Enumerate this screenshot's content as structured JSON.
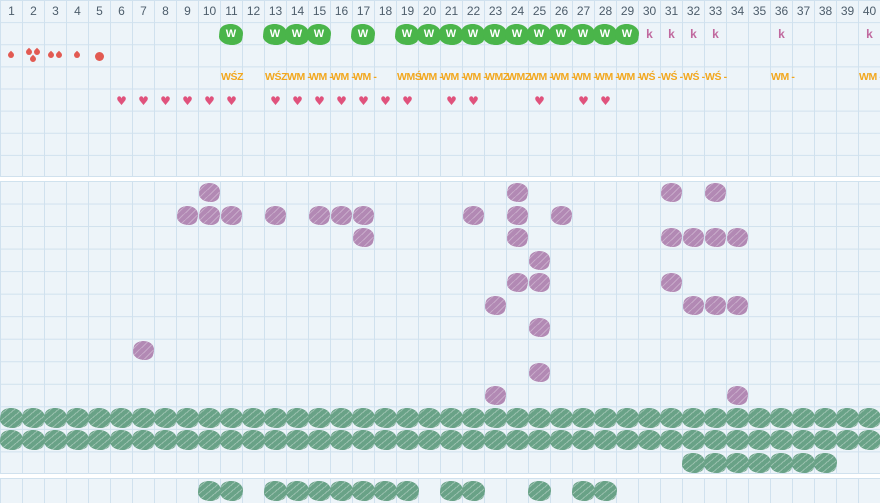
{
  "grid": {
    "columns": [
      "1",
      "2",
      "3",
      "4",
      "5",
      "6",
      "7",
      "8",
      "9",
      "10",
      "11",
      "12",
      "13",
      "14",
      "15",
      "16",
      "17",
      "18",
      "19",
      "20",
      "21",
      "22",
      "23",
      "24",
      "25",
      "26",
      "27",
      "28",
      "29",
      "30",
      "31",
      "32",
      "33",
      "34",
      "35",
      "36",
      "37",
      "38",
      "39",
      "40"
    ]
  },
  "icons": {
    "w_badge": "green-scribble-W-badge",
    "k_mark": "pink-letter-k",
    "droplet": "water-drop-icon",
    "dot": "red-dot-icon",
    "heart": "heart-icon",
    "flower": "purple-flower-scribble-icon",
    "bush": "green-bush-scribble-icon"
  },
  "colors": {
    "section_bg": "#edf4f9",
    "grid_line": "#d0e1ee",
    "header_text": "#4d5d6b",
    "w_green": "#4ab54a",
    "k_pink": "#c0689e",
    "label_orange": "#f2a71e",
    "heart_pink": "#e0527c",
    "drop_red": "#e25a52",
    "flower_purple": "#b289b4",
    "bush_green": "#69a287"
  },
  "section1": {
    "w_badges": {
      "label": "W",
      "cols": [
        11,
        13,
        14,
        15,
        17,
        19,
        20,
        21,
        22,
        23,
        24,
        25,
        26,
        27,
        28,
        29
      ]
    },
    "k_marks": {
      "label": "k",
      "cols": [
        30,
        31,
        32,
        33,
        36,
        40
      ]
    },
    "droplets": [
      {
        "col": 1,
        "count": 1
      },
      {
        "col": 2,
        "count": 3
      },
      {
        "col": 3,
        "count": 2
      },
      {
        "col": 4,
        "count": 1
      }
    ],
    "dot_col": 5,
    "labels": [
      {
        "col": 11,
        "text": "WŚZ"
      },
      {
        "col": 13,
        "text": "WŚZ"
      },
      {
        "col": 14,
        "text": "WM -"
      },
      {
        "col": 15,
        "text": "WM -"
      },
      {
        "col": 16,
        "text": "WM -"
      },
      {
        "col": 17,
        "text": "WM -"
      },
      {
        "col": 19,
        "text": "WMŚ"
      },
      {
        "col": 20,
        "text": "WM -"
      },
      {
        "col": 21,
        "text": "WM -"
      },
      {
        "col": 22,
        "text": "WM -"
      },
      {
        "col": 23,
        "text": "WMZ"
      },
      {
        "col": 24,
        "text": "WMZ"
      },
      {
        "col": 25,
        "text": "WM -"
      },
      {
        "col": 26,
        "text": "WM -"
      },
      {
        "col": 27,
        "text": "WM -"
      },
      {
        "col": 28,
        "text": "WM -"
      },
      {
        "col": 29,
        "text": "WM -"
      },
      {
        "col": 30,
        "text": "WŚ -"
      },
      {
        "col": 31,
        "text": "WŚ -"
      },
      {
        "col": 32,
        "text": "WŚ -"
      },
      {
        "col": 33,
        "text": "WŚ -"
      },
      {
        "col": 36,
        "text": "WM -"
      },
      {
        "col": 40,
        "text": "WM -"
      }
    ],
    "heart_cols": [
      6,
      7,
      8,
      9,
      10,
      11,
      13,
      14,
      15,
      16,
      17,
      18,
      19,
      21,
      22,
      25,
      27,
      28
    ],
    "heart_glyph": "♥"
  },
  "section2": {
    "flower_rows": [
      {
        "row": 1,
        "cols": [
          10,
          24,
          31,
          33
        ]
      },
      {
        "row": 2,
        "cols": [
          9,
          10,
          11,
          13,
          15,
          16,
          17,
          22,
          24,
          26
        ]
      },
      {
        "row": 3,
        "cols": [
          17,
          24,
          31,
          32,
          33,
          34
        ]
      },
      {
        "row": 4,
        "cols": [
          25
        ]
      },
      {
        "row": 5,
        "cols": [
          24,
          25,
          31
        ]
      },
      {
        "row": 6,
        "cols": [
          23,
          32,
          33,
          34
        ]
      },
      {
        "row": 7,
        "cols": [
          25
        ]
      },
      {
        "row": 8,
        "cols": [
          7
        ]
      },
      {
        "row": 9,
        "cols": [
          25
        ]
      },
      {
        "row": 10,
        "cols": [
          23,
          34
        ]
      }
    ],
    "bush_rows": [
      {
        "row": 11,
        "cols": [
          1,
          2,
          3,
          4,
          5,
          6,
          7,
          8,
          9,
          10,
          11,
          12,
          13,
          14,
          15,
          16,
          17,
          18,
          19,
          20,
          21,
          22,
          23,
          24,
          25,
          26,
          27,
          28,
          29,
          30,
          31,
          32,
          33,
          34,
          35,
          36,
          37,
          38,
          39,
          40
        ]
      },
      {
        "row": 12,
        "cols": [
          1,
          2,
          3,
          4,
          5,
          6,
          7,
          8,
          9,
          10,
          11,
          12,
          13,
          14,
          15,
          16,
          17,
          18,
          19,
          20,
          21,
          22,
          23,
          24,
          25,
          26,
          27,
          28,
          29,
          30,
          31,
          32,
          33,
          34,
          35,
          36,
          37,
          38,
          39,
          40
        ]
      },
      {
        "row": 13,
        "cols": [
          32,
          33,
          34,
          35,
          36,
          37,
          38
        ]
      }
    ]
  },
  "section3": {
    "bush_cols": [
      10,
      11,
      13,
      14,
      15,
      16,
      17,
      18,
      19,
      21,
      22,
      25,
      27,
      28
    ]
  }
}
